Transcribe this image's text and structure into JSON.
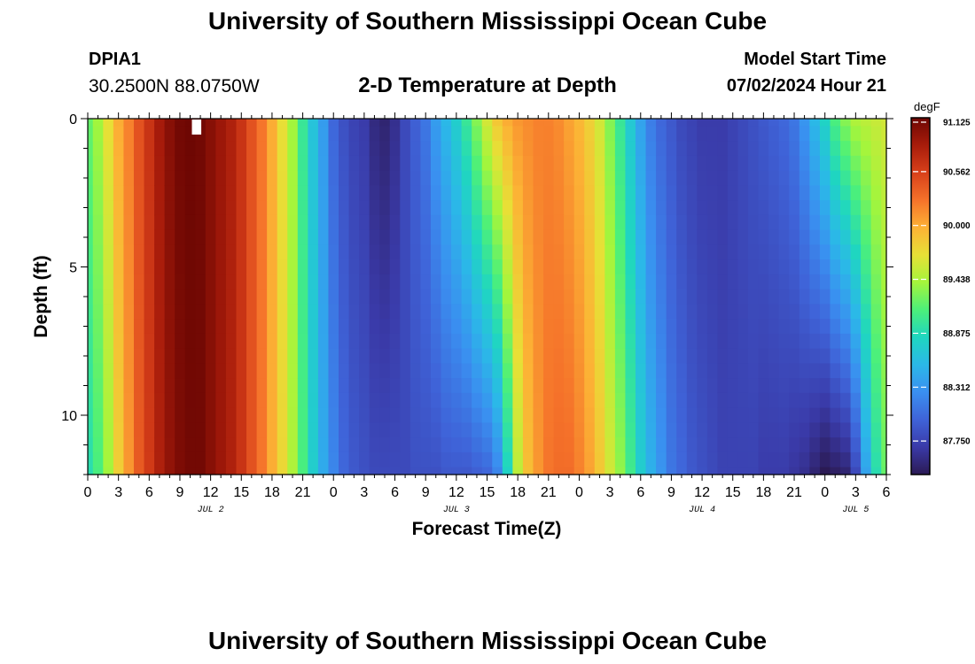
{
  "header": {
    "title": "University of Southern Mississippi Ocean Cube",
    "station": "DPIA1",
    "coords": "30.2500N  88.0750W",
    "subtitle": "2-D Temperature at Depth",
    "model_start_label": "Model Start Time",
    "model_start_value": "07/02/2024 Hour 21"
  },
  "footer": {
    "title": "University of Southern Mississippi Ocean Cube"
  },
  "colors": {
    "colormap": [
      "#2b1a54",
      "#3a3aa8",
      "#3f63d8",
      "#3a8ff0",
      "#2bb8e8",
      "#1fd6c0",
      "#4cf07a",
      "#a4f53c",
      "#e7e036",
      "#fcb235",
      "#f5722a",
      "#d8401a",
      "#a81c0b",
      "#6e0703"
    ]
  },
  "chart_data": {
    "type": "heatmap",
    "title": "2-D Temperature at Depth",
    "xlabel": "Forecast Time(Z)",
    "ylabel": "Depth (ft)",
    "x_range_hours_from_start": [
      0,
      78
    ],
    "x_ticks": [
      {
        "h": 0,
        "label": "0"
      },
      {
        "h": 3,
        "label": "3"
      },
      {
        "h": 6,
        "label": "6"
      },
      {
        "h": 9,
        "label": "9"
      },
      {
        "h": 12,
        "label": "12"
      },
      {
        "h": 15,
        "label": "15"
      },
      {
        "h": 18,
        "label": "18"
      },
      {
        "h": 21,
        "label": "21"
      },
      {
        "h": 24,
        "label": "0"
      },
      {
        "h": 27,
        "label": "3"
      },
      {
        "h": 30,
        "label": "6"
      },
      {
        "h": 33,
        "label": "9"
      },
      {
        "h": 36,
        "label": "12"
      },
      {
        "h": 39,
        "label": "15"
      },
      {
        "h": 42,
        "label": "18"
      },
      {
        "h": 45,
        "label": "21"
      },
      {
        "h": 48,
        "label": "0"
      },
      {
        "h": 51,
        "label": "3"
      },
      {
        "h": 54,
        "label": "6"
      },
      {
        "h": 57,
        "label": "9"
      },
      {
        "h": 60,
        "label": "12"
      },
      {
        "h": 63,
        "label": "15"
      },
      {
        "h": 66,
        "label": "18"
      },
      {
        "h": 69,
        "label": "21"
      },
      {
        "h": 72,
        "label": "0"
      },
      {
        "h": 75,
        "label": "3"
      },
      {
        "h": 78,
        "label": "6"
      }
    ],
    "date_labels": [
      {
        "h": 12,
        "label": "JUL 2"
      },
      {
        "h": 36,
        "label": "JUL 3"
      },
      {
        "h": 60,
        "label": "JUL 4"
      },
      {
        "h": 75,
        "label": "JUL 5"
      }
    ],
    "depth_range_ft": [
      0,
      12
    ],
    "y_ticks": [
      {
        "v": 0,
        "label": "0"
      },
      {
        "v": 5,
        "label": "5"
      },
      {
        "v": 10,
        "label": "10"
      }
    ],
    "colorbar": {
      "unit": "degF",
      "min": 87.4,
      "max": 91.125,
      "ticks": [
        "91.125",
        "90.562",
        "90.000",
        "89.438",
        "88.875",
        "88.312",
        "87.750"
      ]
    },
    "rows_depth_ft": [
      0,
      0.5,
      1,
      1.5,
      2,
      2.5,
      3,
      3.5,
      4,
      4.5,
      5,
      5.5,
      6,
      6.5,
      7,
      7.5,
      8,
      8.5,
      9,
      9.5,
      10,
      10.5,
      11,
      11.5,
      12
    ],
    "surface_profile": [
      {
        "h": 0,
        "t": 89.2
      },
      {
        "h": 1,
        "t": 89.4
      },
      {
        "h": 2,
        "t": 89.7
      },
      {
        "h": 3,
        "t": 90.0
      },
      {
        "h": 4,
        "t": 90.2
      },
      {
        "h": 5,
        "t": 90.45
      },
      {
        "h": 6,
        "t": 90.65
      },
      {
        "h": 7,
        "t": 90.85
      },
      {
        "h": 8,
        "t": 91.0
      },
      {
        "h": 9,
        "t": 91.1
      },
      {
        "h": 10,
        "t": 91.125
      },
      {
        "h": 11,
        "t": 91.1
      },
      {
        "h": 12,
        "t": 91.0
      },
      {
        "h": 13,
        "t": 90.9
      },
      {
        "h": 14,
        "t": 90.8
      },
      {
        "h": 15,
        "t": 90.65
      },
      {
        "h": 16,
        "t": 90.45
      },
      {
        "h": 17,
        "t": 90.25
      },
      {
        "h": 18,
        "t": 90.0
      },
      {
        "h": 19,
        "t": 89.7
      },
      {
        "h": 20,
        "t": 89.4
      },
      {
        "h": 21,
        "t": 89.0
      },
      {
        "h": 22,
        "t": 88.65
      },
      {
        "h": 23,
        "t": 88.35
      },
      {
        "h": 24,
        "t": 88.0
      },
      {
        "h": 25,
        "t": 87.85
      },
      {
        "h": 26,
        "t": 87.75
      },
      {
        "h": 27,
        "t": 87.7
      },
      {
        "h": 28,
        "t": 87.55
      },
      {
        "h": 29,
        "t": 87.5
      },
      {
        "h": 30,
        "t": 87.6
      },
      {
        "h": 31,
        "t": 87.8
      },
      {
        "h": 32,
        "t": 87.95
      },
      {
        "h": 33,
        "t": 88.1
      },
      {
        "h": 34,
        "t": 88.35
      },
      {
        "h": 35,
        "t": 88.55
      },
      {
        "h": 36,
        "t": 88.75
      },
      {
        "h": 37,
        "t": 89.0
      },
      {
        "h": 38,
        "t": 89.3
      },
      {
        "h": 39,
        "t": 89.6
      },
      {
        "h": 40,
        "t": 89.85
      },
      {
        "h": 41,
        "t": 90.0
      },
      {
        "h": 42,
        "t": 90.1
      },
      {
        "h": 43,
        "t": 90.15
      },
      {
        "h": 44,
        "t": 90.2
      },
      {
        "h": 45,
        "t": 90.2
      },
      {
        "h": 46,
        "t": 90.15
      },
      {
        "h": 47,
        "t": 90.05
      },
      {
        "h": 48,
        "t": 89.95
      },
      {
        "h": 49,
        "t": 89.8
      },
      {
        "h": 50,
        "t": 89.6
      },
      {
        "h": 51,
        "t": 89.3
      },
      {
        "h": 52,
        "t": 89.0
      },
      {
        "h": 53,
        "t": 88.7
      },
      {
        "h": 54,
        "t": 88.4
      },
      {
        "h": 55,
        "t": 88.15
      },
      {
        "h": 56,
        "t": 88.0
      },
      {
        "h": 57,
        "t": 87.9
      },
      {
        "h": 58,
        "t": 87.8
      },
      {
        "h": 59,
        "t": 87.75
      },
      {
        "h": 60,
        "t": 87.7
      },
      {
        "h": 61,
        "t": 87.7
      },
      {
        "h": 62,
        "t": 87.7
      },
      {
        "h": 63,
        "t": 87.75
      },
      {
        "h": 64,
        "t": 87.8
      },
      {
        "h": 65,
        "t": 87.85
      },
      {
        "h": 66,
        "t": 87.9
      },
      {
        "h": 67,
        "t": 87.95
      },
      {
        "h": 68,
        "t": 88.0
      },
      {
        "h": 69,
        "t": 88.1
      },
      {
        "h": 70,
        "t": 88.3
      },
      {
        "h": 71,
        "t": 88.55
      },
      {
        "h": 72,
        "t": 88.8
      },
      {
        "h": 73,
        "t": 89.1
      },
      {
        "h": 74,
        "t": 89.3
      },
      {
        "h": 75,
        "t": 89.45
      },
      {
        "h": 76,
        "t": 89.5
      },
      {
        "h": 77,
        "t": 89.55
      },
      {
        "h": 78,
        "t": 89.6
      }
    ],
    "bottom_profile": [
      {
        "h": 0,
        "t": 88.9
      },
      {
        "h": 1,
        "t": 89.1
      },
      {
        "h": 2,
        "t": 89.4
      },
      {
        "h": 3,
        "t": 89.8
      },
      {
        "h": 4,
        "t": 90.1
      },
      {
        "h": 5,
        "t": 90.4
      },
      {
        "h": 6,
        "t": 90.6
      },
      {
        "h": 7,
        "t": 90.8
      },
      {
        "h": 8,
        "t": 90.95
      },
      {
        "h": 9,
        "t": 91.05
      },
      {
        "h": 10,
        "t": 91.1
      },
      {
        "h": 11,
        "t": 91.1
      },
      {
        "h": 12,
        "t": 91.0
      },
      {
        "h": 13,
        "t": 90.9
      },
      {
        "h": 14,
        "t": 90.8
      },
      {
        "h": 15,
        "t": 90.65
      },
      {
        "h": 16,
        "t": 90.45
      },
      {
        "h": 17,
        "t": 90.25
      },
      {
        "h": 18,
        "t": 90.0
      },
      {
        "h": 19,
        "t": 89.75
      },
      {
        "h": 20,
        "t": 89.45
      },
      {
        "h": 21,
        "t": 89.1
      },
      {
        "h": 22,
        "t": 88.75
      },
      {
        "h": 23,
        "t": 88.45
      },
      {
        "h": 24,
        "t": 88.2
      },
      {
        "h": 25,
        "t": 88.0
      },
      {
        "h": 26,
        "t": 87.9
      },
      {
        "h": 27,
        "t": 87.85
      },
      {
        "h": 28,
        "t": 87.8
      },
      {
        "h": 29,
        "t": 87.8
      },
      {
        "h": 30,
        "t": 87.8
      },
      {
        "h": 31,
        "t": 87.8
      },
      {
        "h": 32,
        "t": 87.85
      },
      {
        "h": 33,
        "t": 87.85
      },
      {
        "h": 34,
        "t": 87.85
      },
      {
        "h": 35,
        "t": 87.9
      },
      {
        "h": 36,
        "t": 87.9
      },
      {
        "h": 37,
        "t": 87.9
      },
      {
        "h": 38,
        "t": 87.95
      },
      {
        "h": 39,
        "t": 88.0
      },
      {
        "h": 40,
        "t": 88.2
      },
      {
        "h": 41,
        "t": 88.8
      },
      {
        "h": 42,
        "t": 89.5
      },
      {
        "h": 43,
        "t": 89.9
      },
      {
        "h": 44,
        "t": 90.1
      },
      {
        "h": 45,
        "t": 90.25
      },
      {
        "h": 46,
        "t": 90.3
      },
      {
        "h": 47,
        "t": 90.3
      },
      {
        "h": 48,
        "t": 90.2
      },
      {
        "h": 49,
        "t": 90.05
      },
      {
        "h": 50,
        "t": 89.85
      },
      {
        "h": 51,
        "t": 89.6
      },
      {
        "h": 52,
        "t": 89.35
      },
      {
        "h": 53,
        "t": 89.05
      },
      {
        "h": 54,
        "t": 88.75
      },
      {
        "h": 55,
        "t": 88.5
      },
      {
        "h": 56,
        "t": 88.3
      },
      {
        "h": 57,
        "t": 88.1
      },
      {
        "h": 58,
        "t": 88.0
      },
      {
        "h": 59,
        "t": 87.9
      },
      {
        "h": 60,
        "t": 87.85
      },
      {
        "h": 61,
        "t": 87.8
      },
      {
        "h": 62,
        "t": 87.75
      },
      {
        "h": 63,
        "t": 87.75
      },
      {
        "h": 64,
        "t": 87.75
      },
      {
        "h": 65,
        "t": 87.75
      },
      {
        "h": 66,
        "t": 87.7
      },
      {
        "h": 67,
        "t": 87.7
      },
      {
        "h": 68,
        "t": 87.7
      },
      {
        "h": 69,
        "t": 87.65
      },
      {
        "h": 70,
        "t": 87.6
      },
      {
        "h": 71,
        "t": 87.5
      },
      {
        "h": 72,
        "t": 87.4
      },
      {
        "h": 73,
        "t": 87.45
      },
      {
        "h": 74,
        "t": 87.5
      },
      {
        "h": 75,
        "t": 87.8
      },
      {
        "h": 76,
        "t": 88.4
      },
      {
        "h": 77,
        "t": 88.9
      },
      {
        "h": 78,
        "t": 89.2
      }
    ],
    "missing_cells": [
      {
        "h": 10,
        "depth_ft": 0
      }
    ]
  }
}
